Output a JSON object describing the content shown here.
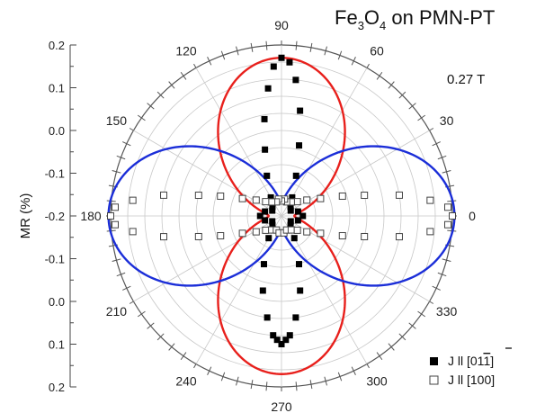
{
  "chart_data": {
    "type": "scatter",
    "subtype": "polar",
    "title": {
      "main": "Fe",
      "sub1": "3",
      "mid": "O",
      "sub2": "4",
      "tail": " on PMN-PT"
    },
    "annotation": "0.27 T",
    "ylabel": "MR (%)",
    "radial_tick_labels": [
      "0.2",
      "0.1",
      "0.0",
      "-0.1",
      "-0.2",
      "-0.1",
      "0.0",
      "0.1",
      "0.2"
    ],
    "radial_axis_values": [
      -0.2,
      -0.1,
      0.0,
      0.1,
      0.2
    ],
    "angle_ticks": [
      0,
      30,
      60,
      90,
      120,
      150,
      180,
      210,
      240,
      270,
      300,
      330
    ],
    "angle_tick_labels": [
      "0",
      "30",
      "60",
      "90",
      "120",
      "150",
      "180",
      "210",
      "240",
      "270",
      "300",
      "330"
    ],
    "grid": true,
    "legend_position": "bottom-right",
    "series": [
      {
        "name": "J || [011̅]",
        "legend_label": "J ll [011]",
        "marker": "filled-square",
        "color": "#000000",
        "description": "vertical lobe data",
        "points": [
          {
            "theta": 84,
            "r": 0.12
          },
          {
            "theta": 87,
            "r": 0.16
          },
          {
            "theta": 90,
            "r": 0.17
          },
          {
            "theta": 93,
            "r": 0.15
          },
          {
            "theta": 96,
            "r": 0.1
          },
          {
            "theta": 100,
            "r": 0.03
          },
          {
            "theta": 80,
            "r": 0.05
          },
          {
            "theta": 76,
            "r": -0.03
          },
          {
            "theta": 104,
            "r": -0.04
          },
          {
            "theta": 70,
            "r": -0.1
          },
          {
            "theta": 110,
            "r": -0.1
          },
          {
            "theta": 60,
            "r": -0.15
          },
          {
            "theta": 120,
            "r": -0.15
          },
          {
            "theta": 45,
            "r": -0.17
          },
          {
            "theta": 135,
            "r": -0.17
          },
          {
            "theta": 30,
            "r": -0.175
          },
          {
            "theta": 150,
            "r": -0.175
          },
          {
            "theta": 15,
            "r": -0.16
          },
          {
            "theta": 165,
            "r": -0.16
          },
          {
            "theta": 0,
            "r": -0.15
          },
          {
            "theta": 180,
            "r": -0.15
          },
          {
            "theta": 195,
            "r": -0.16
          },
          {
            "theta": 345,
            "r": -0.16
          },
          {
            "theta": 210,
            "r": -0.175
          },
          {
            "theta": 330,
            "r": -0.175
          },
          {
            "theta": 225,
            "r": -0.17
          },
          {
            "theta": 315,
            "r": -0.17
          },
          {
            "theta": 240,
            "r": -0.14
          },
          {
            "theta": 300,
            "r": -0.14
          },
          {
            "theta": 250,
            "r": -0.08
          },
          {
            "theta": 290,
            "r": -0.08
          },
          {
            "theta": 256,
            "r": -0.02
          },
          {
            "theta": 284,
            "r": -0.02
          },
          {
            "theta": 262,
            "r": 0.04
          },
          {
            "theta": 278,
            "r": 0.04
          },
          {
            "theta": 266,
            "r": 0.08
          },
          {
            "theta": 274,
            "r": 0.08
          },
          {
            "theta": 270,
            "r": 0.1
          },
          {
            "theta": 268,
            "r": 0.09
          },
          {
            "theta": 272,
            "r": 0.09
          }
        ]
      },
      {
        "name": "J || [100]",
        "legend_label": "J ll [100]",
        "marker": "open-square",
        "color": "#444444",
        "description": "horizontal lobe data",
        "points": [
          {
            "theta": 0,
            "r": 0.2
          },
          {
            "theta": 3,
            "r": 0.19
          },
          {
            "theta": 6,
            "r": 0.15
          },
          {
            "theta": 10,
            "r": 0.08
          },
          {
            "theta": 14,
            "r": 0.0
          },
          {
            "theta": 18,
            "r": -0.05
          },
          {
            "theta": 24,
            "r": -0.1
          },
          {
            "theta": 32,
            "r": -0.13
          },
          {
            "theta": 42,
            "r": -0.15
          },
          {
            "theta": 55,
            "r": -0.16
          },
          {
            "theta": 70,
            "r": -0.165
          },
          {
            "theta": 80,
            "r": -0.16
          },
          {
            "theta": 90,
            "r": -0.165
          },
          {
            "theta": 100,
            "r": -0.16
          },
          {
            "theta": 110,
            "r": -0.165
          },
          {
            "theta": 125,
            "r": -0.16
          },
          {
            "theta": 138,
            "r": -0.15
          },
          {
            "theta": 148,
            "r": -0.13
          },
          {
            "theta": 156,
            "r": -0.1
          },
          {
            "theta": 162,
            "r": -0.05
          },
          {
            "theta": 166,
            "r": 0.0
          },
          {
            "theta": 170,
            "r": 0.08
          },
          {
            "theta": 174,
            "r": 0.15
          },
          {
            "theta": 177,
            "r": 0.19
          },
          {
            "theta": 180,
            "r": 0.2
          },
          {
            "theta": 183,
            "r": 0.19
          },
          {
            "theta": 186,
            "r": 0.15
          },
          {
            "theta": 190,
            "r": 0.08
          },
          {
            "theta": 194,
            "r": 0.0
          },
          {
            "theta": 198,
            "r": -0.05
          },
          {
            "theta": 204,
            "r": -0.1
          },
          {
            "theta": 212,
            "r": -0.13
          },
          {
            "theta": 222,
            "r": -0.15
          },
          {
            "theta": 235,
            "r": -0.16
          },
          {
            "theta": 250,
            "r": -0.165
          },
          {
            "theta": 262,
            "r": -0.16
          },
          {
            "theta": 278,
            "r": -0.16
          },
          {
            "theta": 290,
            "r": -0.165
          },
          {
            "theta": 305,
            "r": -0.16
          },
          {
            "theta": 318,
            "r": -0.15
          },
          {
            "theta": 328,
            "r": -0.13
          },
          {
            "theta": 336,
            "r": -0.1
          },
          {
            "theta": 342,
            "r": -0.05
          },
          {
            "theta": 346,
            "r": 0.0
          },
          {
            "theta": 350,
            "r": 0.08
          },
          {
            "theta": 354,
            "r": 0.15
          },
          {
            "theta": 357,
            "r": 0.19
          }
        ]
      }
    ],
    "fits": [
      {
        "name": "fit-vertical",
        "color": "#e8201c",
        "amplitude": 0.34,
        "axis": 90,
        "offset": -0.17
      },
      {
        "name": "fit-horizontal",
        "color": "#1b2ed8",
        "amplitude": 0.37,
        "axis": 0,
        "offset": -0.165
      }
    ],
    "rmin": -0.2,
    "rmax": 0.2
  }
}
